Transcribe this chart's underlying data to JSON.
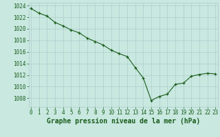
{
  "x": [
    0,
    1,
    2,
    3,
    4,
    5,
    6,
    7,
    8,
    9,
    10,
    11,
    12,
    13,
    14,
    15,
    16,
    17,
    18,
    19,
    20,
    21,
    22,
    23
  ],
  "y": [
    1023.5,
    1022.7,
    1022.2,
    1021.1,
    1020.5,
    1019.8,
    1019.3,
    1018.4,
    1017.8,
    1017.2,
    1016.3,
    1015.7,
    1015.2,
    1013.3,
    1011.5,
    1007.6,
    1008.3,
    1008.7,
    1010.4,
    1010.6,
    1011.8,
    1012.1,
    1012.3,
    1012.2
  ],
  "ylim": [
    1006.5,
    1024.5
  ],
  "yticks": [
    1008,
    1010,
    1012,
    1014,
    1016,
    1018,
    1020,
    1022,
    1024
  ],
  "xticks": [
    0,
    1,
    2,
    3,
    4,
    5,
    6,
    7,
    8,
    9,
    10,
    11,
    12,
    13,
    14,
    15,
    16,
    17,
    18,
    19,
    20,
    21,
    22,
    23
  ],
  "xlabel": "Graphe pression niveau de la mer (hPa)",
  "line_color": "#1a5c1a",
  "marker": "+",
  "marker_color": "#1a5c1a",
  "bg_color": "#c8e8e0",
  "grid_color": "#b0cccc",
  "text_color": "#1a5c1a",
  "xlabel_color": "#1a5c1a",
  "tick_color": "#1a5c1a",
  "tick_fontsize": 5.5,
  "xlabel_fontsize": 7.0
}
